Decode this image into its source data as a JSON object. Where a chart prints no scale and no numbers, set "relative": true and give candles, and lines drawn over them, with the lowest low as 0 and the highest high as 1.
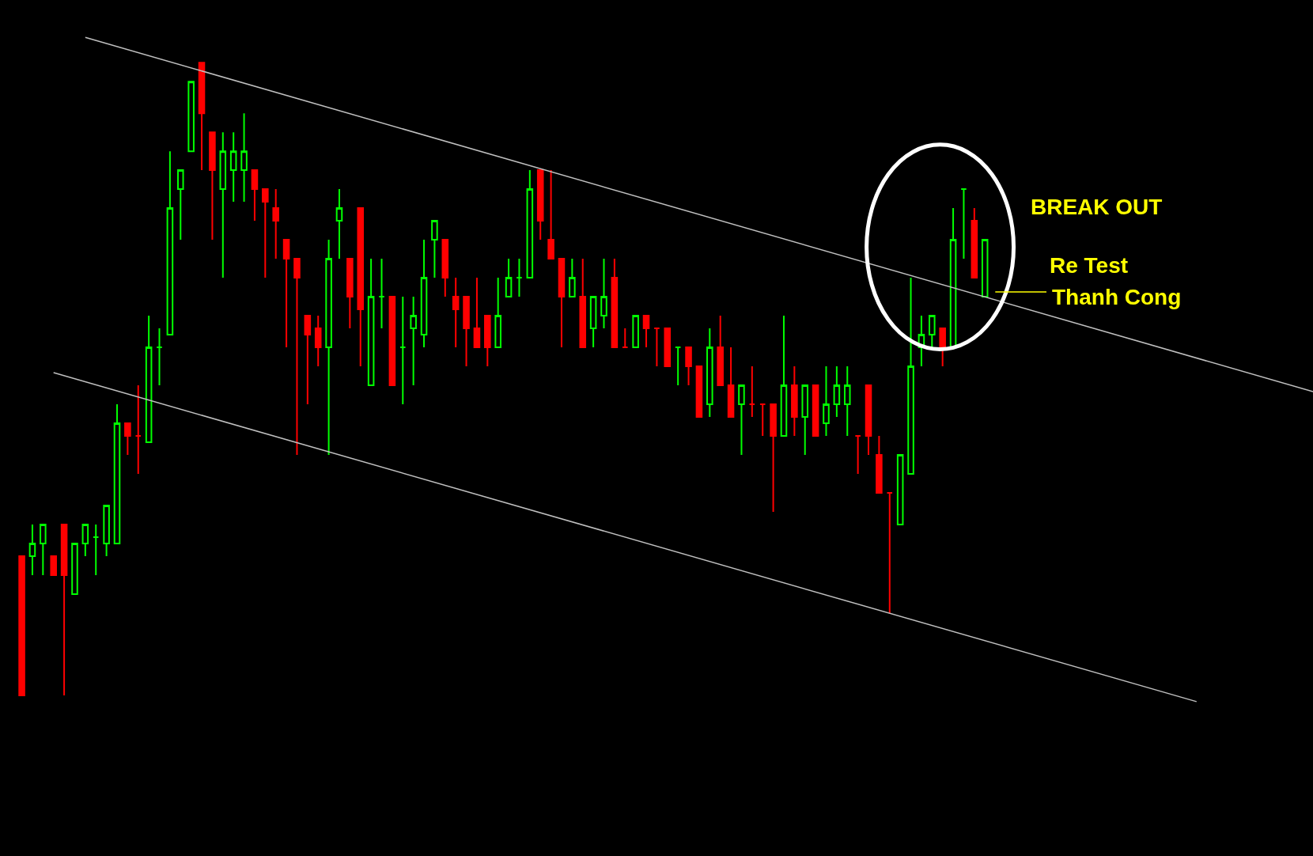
{
  "chart_data": {
    "type": "candlestick",
    "relative": true,
    "categories": [
      null,
      null,
      null,
      null,
      null,
      null,
      null,
      null,
      null,
      null,
      null,
      null,
      null,
      null,
      null,
      null,
      null,
      null,
      null,
      null,
      null,
      null,
      null,
      null,
      null,
      null,
      null,
      null,
      null,
      null,
      null,
      null,
      null,
      null,
      null,
      null,
      null,
      null,
      null,
      null,
      null,
      null,
      null,
      null,
      null,
      null,
      null,
      null,
      null,
      null,
      null,
      null,
      null,
      null,
      null,
      null,
      null,
      null,
      null,
      null,
      null,
      null,
      null,
      null,
      null,
      null,
      null,
      null,
      null,
      null,
      null,
      null,
      null,
      null,
      null,
      null,
      null,
      null,
      null,
      null,
      null,
      null,
      null,
      null,
      null,
      null,
      null,
      null,
      null,
      null,
      null,
      null,
      null,
      null,
      null,
      null,
      null,
      null,
      null,
      null,
      null,
      null,
      null,
      null,
      null,
      null,
      null,
      null,
      null,
      null,
      null,
      null,
      null,
      null,
      null,
      null,
      null,
      null,
      null,
      null,
      null,
      null,
      null
    ],
    "series": [
      {
        "ohlc": [
          [
            0.22,
            0.22,
            0,
            0
          ],
          [
            0.22,
            0.27,
            0.19,
            0.24
          ],
          [
            0.24,
            0.27,
            0.19,
            0.27
          ],
          [
            0.22,
            0.22,
            0.19,
            0.19
          ],
          [
            0.27,
            0.27,
            0,
            0.19
          ],
          [
            0.16,
            0.24,
            0.16,
            0.24
          ],
          [
            0.24,
            0.27,
            0.22,
            0.27
          ],
          [
            0.25,
            0.27,
            0.19,
            0.25
          ],
          [
            0.24,
            0.3,
            0.22,
            0.3
          ],
          [
            0.24,
            0.46,
            0.24,
            0.43
          ],
          [
            0.43,
            0.43,
            0.38,
            0.41
          ],
          [
            0.41,
            0.49,
            0.35,
            0.41
          ],
          [
            0.4,
            0.6,
            0.4,
            0.55
          ],
          [
            0.55,
            0.58,
            0.49,
            0.55
          ],
          [
            0.57,
            0.86,
            0.57,
            0.77
          ],
          [
            0.8,
            0.83,
            0.72,
            0.83
          ],
          [
            0.86,
            0.97,
            0.86,
            0.97
          ],
          [
            1,
            1,
            0.83,
            0.92
          ],
          [
            0.89,
            0.89,
            0.72,
            0.83
          ],
          [
            0.8,
            0.89,
            0.66,
            0.86
          ],
          [
            0.83,
            0.89,
            0.78,
            0.86
          ],
          [
            0.83,
            0.92,
            0.78,
            0.86
          ],
          [
            0.83,
            0.83,
            0.75,
            0.8
          ],
          [
            0.8,
            0.8,
            0.66,
            0.78
          ],
          [
            0.77,
            0.8,
            0.69,
            0.75
          ],
          [
            0.72,
            0.72,
            0.55,
            0.69
          ],
          [
            0.69,
            0.69,
            0.38,
            0.66
          ],
          [
            0.6,
            0.6,
            0.46,
            0.57
          ],
          [
            0.58,
            0.6,
            0.52,
            0.55
          ],
          [
            0.55,
            0.72,
            0.38,
            0.69
          ],
          [
            0.75,
            0.8,
            0.69,
            0.77
          ],
          [
            0.69,
            0.69,
            0.58,
            0.63
          ],
          [
            0.77,
            0.77,
            0.52,
            0.61
          ],
          [
            0.49,
            0.69,
            0.49,
            0.63
          ],
          [
            0.63,
            0.69,
            0.58,
            0.63
          ],
          [
            0.63,
            0.63,
            0.49,
            0.49
          ],
          [
            0.55,
            0.63,
            0.46,
            0.55
          ],
          [
            0.58,
            0.63,
            0.49,
            0.6
          ],
          [
            0.57,
            0.72,
            0.55,
            0.66
          ],
          [
            0.72,
            0.75,
            0.66,
            0.75
          ],
          [
            0.72,
            0.72,
            0.63,
            0.66
          ],
          [
            0.63,
            0.66,
            0.55,
            0.61
          ],
          [
            0.63,
            0.63,
            0.52,
            0.58
          ],
          [
            0.58,
            0.66,
            0.55,
            0.55
          ],
          [
            0.6,
            0.6,
            0.52,
            0.55
          ],
          [
            0.55,
            0.66,
            0.55,
            0.6
          ],
          [
            0.63,
            0.69,
            0.63,
            0.66
          ],
          [
            0.66,
            0.69,
            0.63,
            0.66
          ],
          [
            0.66,
            0.83,
            0.66,
            0.8
          ],
          [
            0.83,
            0.83,
            0.72,
            0.75
          ],
          [
            0.72,
            0.83,
            0.69,
            0.69
          ],
          [
            0.69,
            0.69,
            0.55,
            0.63
          ],
          [
            0.63,
            0.69,
            0.63,
            0.66
          ],
          [
            0.63,
            0.69,
            0.55,
            0.55
          ],
          [
            0.58,
            0.63,
            0.55,
            0.63
          ],
          [
            0.6,
            0.69,
            0.58,
            0.63
          ],
          [
            0.66,
            0.69,
            0.55,
            0.55
          ],
          [
            0.55,
            0.58,
            0.55,
            0.55
          ],
          [
            0.55,
            0.6,
            0.55,
            0.6
          ],
          [
            0.6,
            0.6,
            0.55,
            0.58
          ],
          [
            0.58,
            0.58,
            0.52,
            0.58
          ],
          [
            0.58,
            0.58,
            0.52,
            0.52
          ],
          [
            0.55,
            0.55,
            0.49,
            0.55
          ],
          [
            0.55,
            0.55,
            0.49,
            0.52
          ],
          [
            0.52,
            0.52,
            0.44,
            0.44
          ],
          [
            0.46,
            0.58,
            0.44,
            0.55
          ],
          [
            0.55,
            0.6,
            0.49,
            0.49
          ],
          [
            0.49,
            0.55,
            0.44,
            0.44
          ],
          [
            0.46,
            0.49,
            0.38,
            0.49
          ],
          [
            0.46,
            0.52,
            0.44,
            0.46
          ],
          [
            0.46,
            0.46,
            0.41,
            0.46
          ],
          [
            0.46,
            0.46,
            0.29,
            0.41
          ],
          [
            0.41,
            0.6,
            0.41,
            0.49
          ],
          [
            0.49,
            0.52,
            0.41,
            0.44
          ],
          [
            0.44,
            0.49,
            0.38,
            0.49
          ],
          [
            0.49,
            0.49,
            0.41,
            0.41
          ],
          [
            0.43,
            0.52,
            0.41,
            0.46
          ],
          [
            0.46,
            0.52,
            0.44,
            0.49
          ],
          [
            0.46,
            0.52,
            0.41,
            0.49
          ],
          [
            0.41,
            0.41,
            0.35,
            0.41
          ],
          [
            0.49,
            0.49,
            0.38,
            0.41
          ],
          [
            0.38,
            0.41,
            0.32,
            0.32
          ],
          [
            0.32,
            0.32,
            0.13,
            0.32
          ],
          [
            0.27,
            0.38,
            0.27,
            0.38
          ],
          [
            0.35,
            0.66,
            0.35,
            0.52
          ],
          [
            0.55,
            0.6,
            0.52,
            0.57
          ],
          [
            0.57,
            0.6,
            0.55,
            0.6
          ],
          [
            0.58,
            0.58,
            0.52,
            0.55
          ],
          [
            0.55,
            0.77,
            0.55,
            0.72
          ],
          [
            0.8,
            0.8,
            0.69,
            0.8
          ],
          [
            0.75,
            0.77,
            0.66,
            0.66
          ],
          [
            0.63,
            0.72,
            0.63,
            0.72
          ],
          null,
          null,
          null,
          null,
          null,
          null,
          null,
          null,
          null,
          null,
          null,
          null,
          null,
          null,
          null,
          null,
          null,
          null,
          null,
          null,
          null,
          null,
          null,
          null,
          null,
          null,
          null,
          null,
          null,
          null,
          null
        ],
        "colors": [
          "#ff0000",
          "#00ff00",
          "#00ff00",
          "#ff0000",
          "#ff0000",
          "#00ff00",
          "#00ff00",
          "#00ff00",
          "#00ff00",
          "#00ff00",
          "#ff0000",
          "#ff0000",
          "#00ff00",
          "#00ff00",
          "#00ff00",
          "#00ff00",
          "#00ff00",
          "#ff0000",
          "#ff0000",
          "#00ff00",
          "#00ff00",
          "#00ff00",
          "#ff0000",
          "#ff0000",
          "#ff0000",
          "#ff0000",
          "#ff0000",
          "#ff0000",
          "#ff0000",
          "#00ff00",
          "#00ff00",
          "#ff0000",
          "#ff0000",
          "#00ff00",
          "#00ff00",
          "#ff0000",
          "#00ff00",
          "#00ff00",
          "#00ff00",
          "#00ff00",
          "#ff0000",
          "#ff0000",
          "#ff0000",
          "#ff0000",
          "#ff0000",
          "#00ff00",
          "#00ff00",
          "#00ff00",
          "#00ff00",
          "#ff0000",
          "#ff0000",
          "#ff0000",
          "#00ff00",
          "#ff0000",
          "#00ff00",
          "#00ff00",
          "#ff0000",
          "#ff0000",
          "#00ff00",
          "#ff0000",
          "#ff0000",
          "#ff0000",
          "#00ff00",
          "#ff0000",
          "#ff0000",
          "#00ff00",
          "#ff0000",
          "#ff0000",
          "#00ff00",
          "#ff0000",
          "#ff0000",
          "#ff0000",
          "#00ff00",
          "#ff0000",
          "#00ff00",
          "#ff0000",
          "#00ff00",
          "#00ff00",
          "#00ff00",
          "#ff0000",
          "#ff0000",
          "#ff0000",
          "#ff0000",
          "#00ff00",
          "#00ff00",
          "#00ff00",
          "#00ff00",
          "#ff0000",
          "#00ff00",
          "#00ff00",
          "#ff0000",
          "#00ff00",
          null,
          null,
          null,
          null,
          null,
          null,
          null,
          null,
          null,
          null,
          null,
          null,
          null,
          null,
          null,
          null,
          null,
          null,
          null,
          null,
          null,
          null,
          null,
          null,
          null,
          null,
          null,
          null,
          null,
          null,
          null
        ]
      },
      {
        "type": "line",
        "color": "#c0c0c0",
        "values": [
          null,
          null,
          null,
          null,
          null,
          null,
          1.04,
          null,
          null,
          null,
          null,
          null,
          null,
          null,
          null,
          null,
          null,
          null,
          null,
          null,
          null,
          null,
          null,
          null,
          null,
          null,
          null,
          null,
          null,
          null,
          null,
          null,
          null,
          null,
          null,
          null,
          null,
          null,
          null,
          null,
          null,
          null,
          null,
          null,
          null,
          null,
          null,
          null,
          null,
          null,
          null,
          null,
          null,
          null,
          null,
          null,
          null,
          null,
          null,
          null,
          null,
          null,
          null,
          null,
          null,
          null,
          null,
          null,
          null,
          null,
          null,
          null,
          null,
          null,
          null,
          null,
          null,
          null,
          null,
          null,
          null,
          null,
          null,
          null,
          null,
          null,
          null,
          null,
          null,
          null,
          null,
          null,
          null,
          null,
          null,
          null,
          null,
          null,
          null,
          null,
          null,
          null,
          null,
          null,
          null,
          null,
          null,
          null,
          null,
          null,
          null,
          null,
          null,
          null,
          null,
          null,
          null,
          null,
          null,
          null,
          null,
          null,
          0.48
        ]
      },
      {
        "type": "line",
        "color": "#c0c0c0",
        "values": [
          null,
          null,
          null,
          0.51,
          null,
          null,
          null,
          null,
          null,
          null,
          null,
          null,
          null,
          null,
          null,
          null,
          null,
          null,
          null,
          null,
          null,
          null,
          null,
          null,
          null,
          null,
          null,
          null,
          null,
          null,
          null,
          null,
          null,
          null,
          null,
          null,
          null,
          null,
          null,
          null,
          null,
          null,
          null,
          null,
          null,
          null,
          null,
          null,
          null,
          null,
          null,
          null,
          null,
          null,
          null,
          null,
          null,
          null,
          null,
          null,
          null,
          null,
          null,
          null,
          null,
          null,
          null,
          null,
          null,
          null,
          null,
          null,
          null,
          null,
          null,
          null,
          null,
          null,
          null,
          null,
          null,
          null,
          null,
          null,
          null,
          null,
          null,
          null,
          null,
          null,
          null,
          null,
          null,
          null,
          null,
          null,
          null,
          null,
          null,
          null,
          null,
          null,
          null,
          null,
          null,
          null,
          null,
          null,
          null,
          null,
          null,
          -0.01,
          null,
          null,
          null,
          null,
          null,
          null,
          null,
          null,
          null,
          null,
          null
        ]
      }
    ],
    "annotations": [
      "BREAK OUT",
      "Re Test",
      "Thanh Cong"
    ]
  }
}
